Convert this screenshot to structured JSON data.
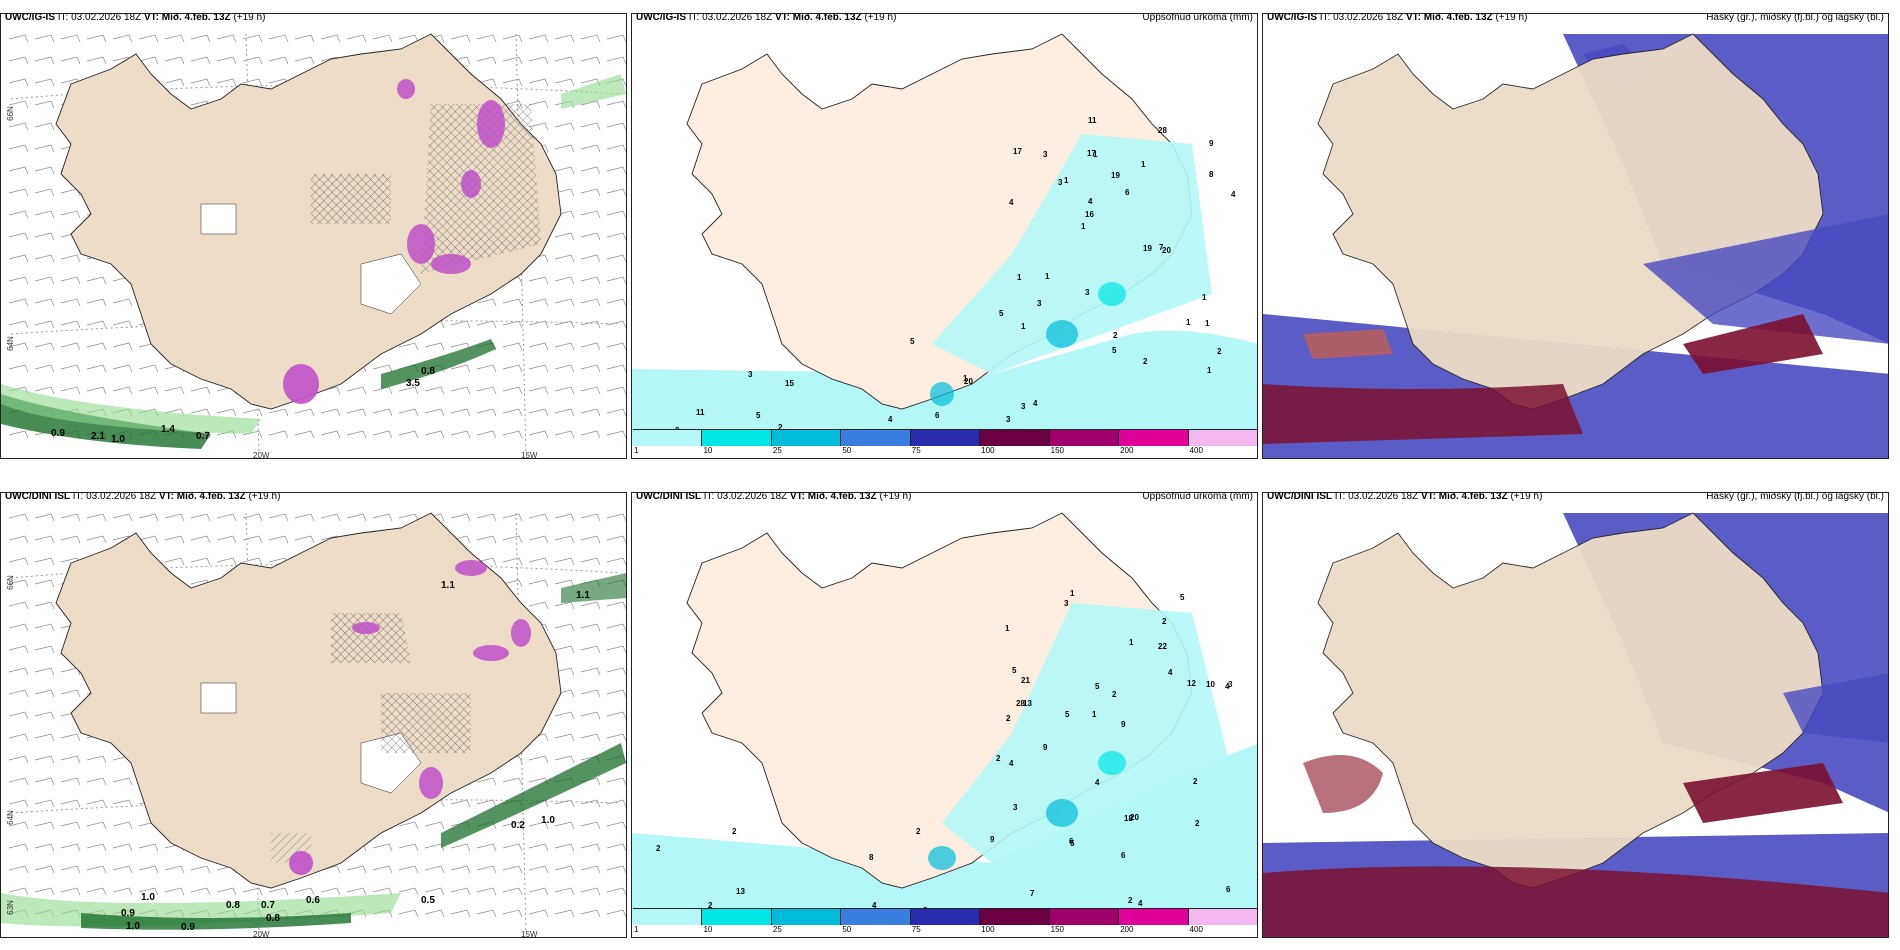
{
  "rows": [
    {
      "model": "UWC/IG-IS",
      "it_label": "IT:",
      "it_value": "03.02.2026 18Z",
      "vt_label": "VT:",
      "vt_value": "Mið. 4.feb. 13Z",
      "lead": "(+19 h)"
    },
    {
      "model": "UWC/DINI ISL",
      "it_label": "IT:",
      "it_value": "03.02.2026 18Z",
      "vt_label": "VT:",
      "vt_value": "Mið. 4.feb. 13Z",
      "lead": "(+19 h)"
    }
  ],
  "panels": {
    "precip_title": "Uppsöfnuð úrkoma (mm)",
    "cloud_title": "Háský (gr.), miðský (fj.bl.) og lágský (bl.)"
  },
  "axis": {
    "lat66": "66N",
    "lat64": "64N",
    "lat63": "63N",
    "lon20": "20W",
    "lon15": "15W"
  },
  "colorbar": {
    "levels": [
      "1",
      "10",
      "25",
      "50",
      "75",
      "100",
      "150",
      "200",
      "400"
    ],
    "colors": [
      "#b4f7f7",
      "#00e6e6",
      "#00bcd8",
      "#3a7fe0",
      "#2a2cb0",
      "#6a0040",
      "#a0006a",
      "#e0009a",
      "#f4b8f0"
    ]
  },
  "precip_labels_top": [
    "1",
    "4",
    "9",
    "1",
    "1",
    "1",
    "17",
    "19",
    "1",
    "1",
    "5",
    "3",
    "1",
    "6",
    "20",
    "17",
    "11",
    "4",
    "19",
    "8",
    "16",
    "3",
    "4",
    "3",
    "28",
    "1",
    "1",
    "1",
    "7",
    "2",
    "3",
    "3",
    "3",
    "2",
    "1",
    "1",
    "2",
    "4",
    "20",
    "11",
    "2",
    "2",
    "4",
    "3",
    "5",
    "5",
    "4",
    "6",
    "5",
    "5",
    "15"
  ],
  "precip_labels_bottom": [
    "1",
    "2",
    "4",
    "1",
    "9",
    "13",
    "1",
    "22",
    "2",
    "1",
    "2",
    "3",
    "3",
    "5",
    "18",
    "20",
    "4",
    "5",
    "4",
    "9",
    "21",
    "28",
    "3",
    "10",
    "2",
    "5",
    "5",
    "12",
    "2",
    "4",
    "2",
    "9",
    "13",
    "8",
    "7",
    "6",
    "6",
    "4",
    "2",
    "2",
    "2",
    "2",
    "3",
    "2",
    "8",
    "5",
    "4",
    "6",
    "2"
  ],
  "wind_values_top": [
    "0.9",
    "2.1",
    "1.0",
    "1.4",
    "0.7",
    "0.8",
    "3.5"
  ],
  "wind_values_bottom": [
    "1.1",
    "1.1",
    "1.0",
    "0.9",
    "0.8",
    "0.7",
    "1.0",
    "0.8",
    "0.6",
    "0.5",
    "0.2",
    "1.0",
    "0.9"
  ]
}
